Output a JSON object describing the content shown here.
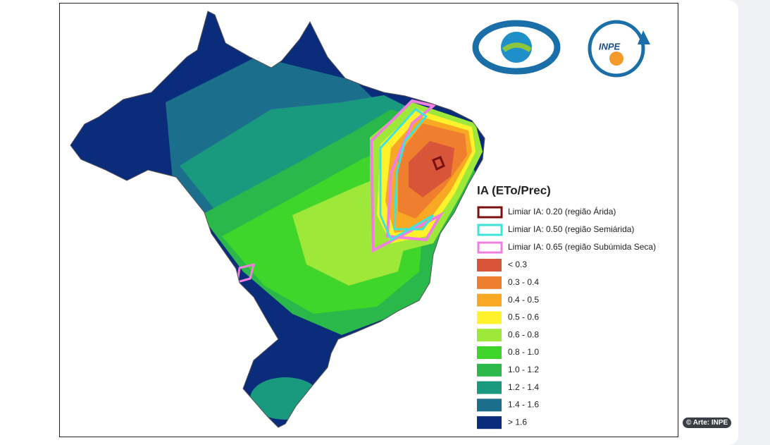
{
  "map": {
    "logo_text": "INPE",
    "legend": {
      "title": "IA (ETo/Prec)",
      "thresholds": [
        {
          "label": "Limiar IA: 0.20 (região Árida)",
          "color": "#7a1010"
        },
        {
          "label": "Limiar IA: 0.50 (região Semiárida)",
          "color": "#3fe3da"
        },
        {
          "label": "Limiar IA: 0.65 (região Subúmida Seca)",
          "color": "#f07fe0"
        }
      ],
      "classes": [
        {
          "label": "< 0.3",
          "color": "#d9553a"
        },
        {
          "label": "0.3 - 0.4",
          "color": "#ef7f2e"
        },
        {
          "label": "0.4 - 0.5",
          "color": "#f8a823"
        },
        {
          "label": "0.5 - 0.6",
          "color": "#fff22a"
        },
        {
          "label": "0.6 - 0.8",
          "color": "#9ee83a"
        },
        {
          "label": "0.8 - 1.0",
          "color": "#3fd52b"
        },
        {
          "label": "1.0 - 1.2",
          "color": "#2ab84a"
        },
        {
          "label": "1.2 - 1.4",
          "color": "#199a7e"
        },
        {
          "label": "1.4 - 1.6",
          "color": "#1b6f8c"
        },
        {
          "label": "> 1.6",
          "color": "#0a2c7b"
        }
      ]
    },
    "credit": "© Arte: INPE"
  }
}
